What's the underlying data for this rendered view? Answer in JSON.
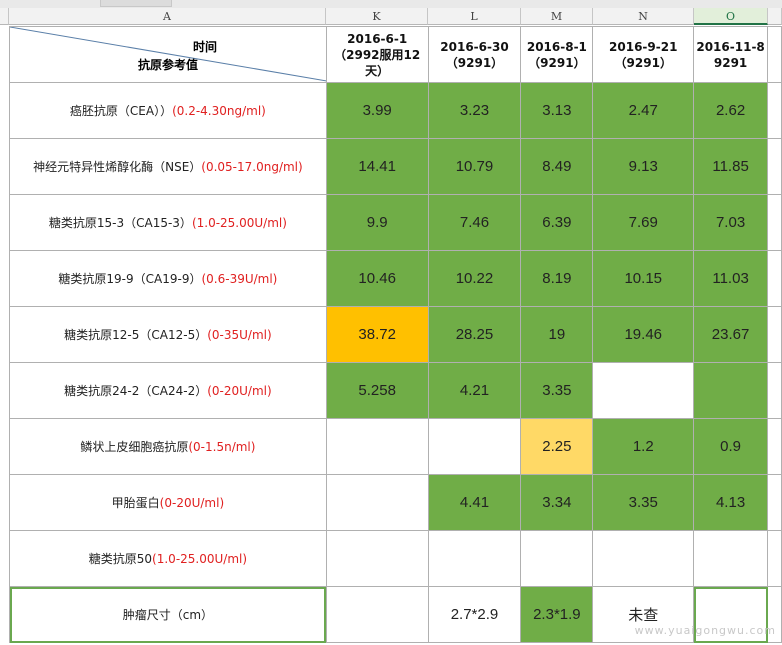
{
  "columns": [
    "A",
    "K",
    "L",
    "M",
    "N",
    "O"
  ],
  "selected_column": "O",
  "header": {
    "time_label": "时间",
    "ref_label": "抗原参考值",
    "dates": [
      {
        "line1": "2016-6-1",
        "line2": "（2992服用12",
        "line3": "天）"
      },
      {
        "line1": "2016-6-30",
        "line2": "（9291）",
        "line3": ""
      },
      {
        "line1": "2016-8-1",
        "line2": "（9291）",
        "line3": ""
      },
      {
        "line1": "2016-9-21",
        "line2": "（9291）",
        "line3": ""
      },
      {
        "line1": "2016-11-8",
        "line2": "9291",
        "line3": ""
      }
    ]
  },
  "rows": [
    {
      "name": "癌胚抗原（CEA））",
      "ref": "(0.2-4.30ng/ml)",
      "values": [
        "3.99",
        "3.23",
        "3.13",
        "2.47",
        "2.62"
      ],
      "fills": [
        "green",
        "green",
        "green",
        "green",
        "green"
      ]
    },
    {
      "name": "神经元特异性烯醇化酶（NSE）",
      "ref": "(0.05-17.0ng/ml)",
      "values": [
        "14.41",
        "10.79",
        "8.49",
        "9.13",
        "11.85"
      ],
      "fills": [
        "green",
        "green",
        "green",
        "green",
        "green"
      ]
    },
    {
      "name": "糖类抗原15-3（CA15-3）",
      "ref": "(1.0-25.00U/ml)",
      "values": [
        "9.9",
        "7.46",
        "6.39",
        "7.69",
        "7.03"
      ],
      "fills": [
        "green",
        "green",
        "green",
        "green",
        "green"
      ]
    },
    {
      "name": "糖类抗原19-9（CA19-9）",
      "ref": "(0.6-39U/ml)",
      "values": [
        "10.46",
        "10.22",
        "8.19",
        "10.15",
        "11.03"
      ],
      "fills": [
        "green",
        "green",
        "green",
        "green",
        "green"
      ]
    },
    {
      "name": "糖类抗原12-5（CA12-5）",
      "ref": "(0-35U/ml)",
      "values": [
        "38.72",
        "28.25",
        "19",
        "19.46",
        "23.67"
      ],
      "fills": [
        "orange",
        "green",
        "green",
        "green",
        "green"
      ]
    },
    {
      "name": "糖类抗原24-2（CA24-2）",
      "ref": "(0-20U/ml)",
      "values": [
        "5.258",
        "4.21",
        "3.35",
        "",
        ""
      ],
      "fills": [
        "green",
        "green",
        "green",
        "white",
        "green"
      ]
    },
    {
      "name": "鳞状上皮细胞癌抗原",
      "ref": "(0-1.5n/ml)",
      "values": [
        "",
        "",
        "2.25",
        "1.2",
        "0.9"
      ],
      "fills": [
        "white",
        "white",
        "yellow",
        "green",
        "green"
      ]
    },
    {
      "name": "甲胎蛋白",
      "ref": "(0-20U/ml)",
      "values": [
        "",
        "4.41",
        "3.34",
        "3.35",
        "4.13"
      ],
      "fills": [
        "white",
        "green",
        "green",
        "green",
        "green"
      ]
    },
    {
      "name": "糖类抗原50",
      "ref": "(1.0-25.00U/ml)",
      "values": [
        "",
        "",
        "",
        "",
        ""
      ],
      "fills": [
        "white",
        "white",
        "white",
        "white",
        "white"
      ]
    },
    {
      "name": "肿瘤尺寸（cm）",
      "ref": "",
      "values": [
        "",
        "2.7*2.9",
        "2.3*1.9",
        "未查",
        ""
      ],
      "fills": [
        "white",
        "white",
        "green",
        "white",
        "white"
      ]
    }
  ],
  "colors": {
    "green": "#70ad47",
    "orange": "#ffc000",
    "yellow": "#ffd966",
    "reference": "#e02020",
    "selection": "#6aa84f"
  },
  "watermark": "www.yuaigongwu.com"
}
